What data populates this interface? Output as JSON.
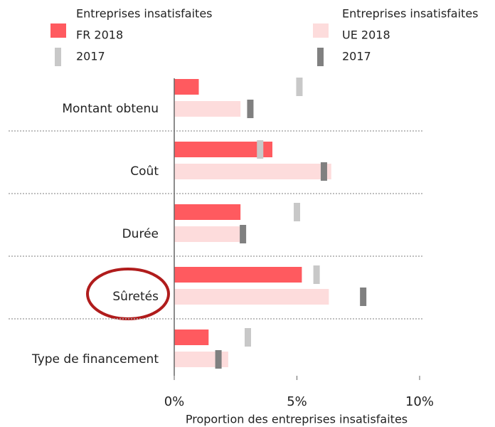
{
  "chart_data": {
    "type": "bar",
    "orientation": "horizontal",
    "categories": [
      "Montant obtenu",
      "Coût",
      "Durée",
      "Sûretés",
      "Type de financement"
    ],
    "legend_titles": [
      "Entreprises insatisfaites",
      "Entreprises insatisfaites"
    ],
    "series": [
      {
        "name": "FR 2018",
        "color": "#ff5a5f",
        "style": "bar",
        "values": [
          1.0,
          4.0,
          2.7,
          5.2,
          1.4
        ]
      },
      {
        "name": "2017",
        "color": "#c8c8c8",
        "style": "marker",
        "values": [
          5.1,
          3.5,
          5.0,
          5.8,
          3.0
        ]
      },
      {
        "name": "UE 2018",
        "color": "#fddcdc",
        "style": "bar",
        "values": [
          2.7,
          6.4,
          2.9,
          6.3,
          2.2
        ]
      },
      {
        "name": "2017",
        "color": "#808080",
        "style": "marker",
        "values": [
          3.1,
          6.1,
          2.8,
          7.7,
          1.8
        ]
      }
    ],
    "xlim": [
      0,
      10
    ],
    "xticks": [
      {
        "value": 0,
        "label": "0%"
      },
      {
        "value": 5,
        "label": "5%"
      },
      {
        "value": 10,
        "label": "10%"
      }
    ],
    "x_label": "Proportion  des entreprises insatisfaites"
  }
}
